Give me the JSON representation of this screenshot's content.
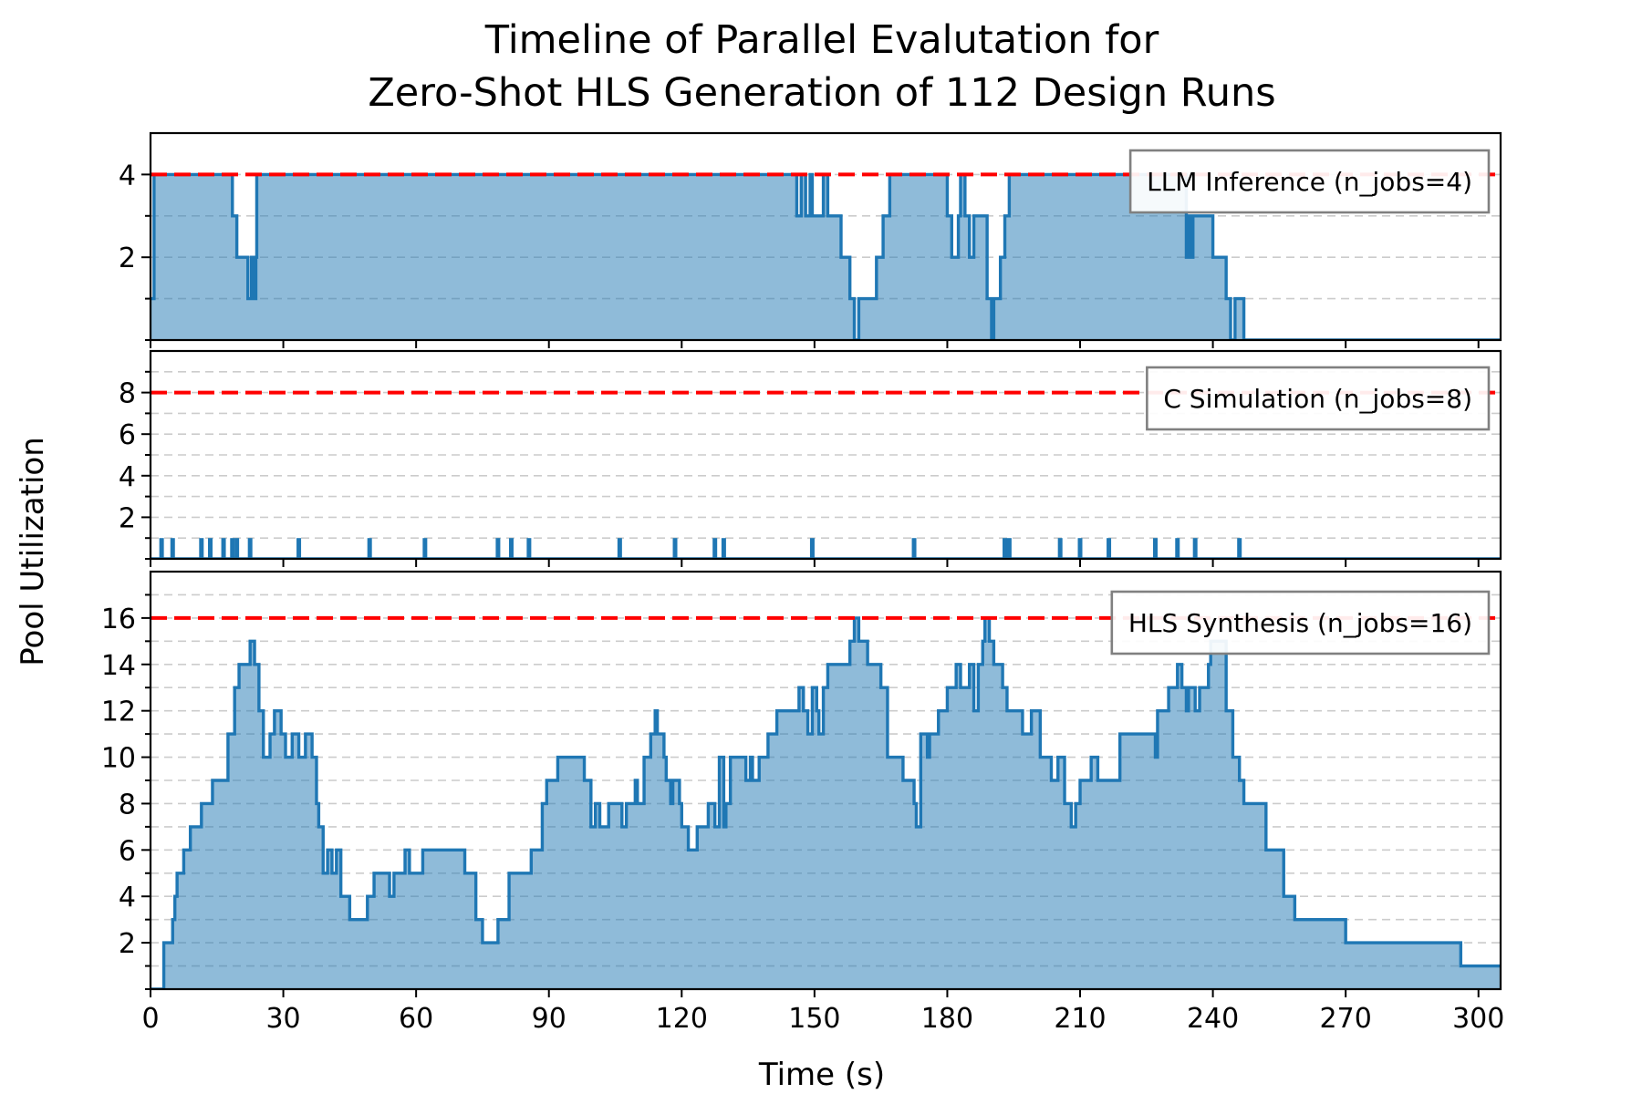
{
  "chart_data": {
    "type": "area",
    "title": [
      "Timeline of Parallel Evalutation for",
      "Zero-Shot HLS Generation of 112 Design Runs"
    ],
    "xlabel": "Time (s)",
    "ylabel": "Pool Utilization",
    "xlim": [
      0,
      305
    ],
    "x_ticks": [
      0,
      30,
      60,
      90,
      120,
      150,
      180,
      210,
      240,
      270,
      300
    ],
    "colors": {
      "step": "#1f77b4",
      "fill": "#1f77b4",
      "capacity": "#ff0000",
      "grid": "#cccccc"
    },
    "panels": [
      {
        "name": "LLM Inference (n_jobs=4)",
        "legend": "LLM Inference (n_jobs=4)",
        "capacity": 4,
        "ylim": [
          0,
          5
        ],
        "major_ticks": [
          2,
          4
        ],
        "minor_ticks": [
          0,
          1,
          2,
          3,
          4
        ],
        "steps": [
          [
            0,
            1
          ],
          [
            0.8,
            4
          ],
          [
            18.5,
            3
          ],
          [
            19.5,
            2
          ],
          [
            22,
            1
          ],
          [
            22.8,
            2
          ],
          [
            23.3,
            1
          ],
          [
            23.8,
            2
          ],
          [
            24,
            4
          ],
          [
            146,
            3
          ],
          [
            147,
            4
          ],
          [
            148,
            3
          ],
          [
            149,
            4
          ],
          [
            149.5,
            3
          ],
          [
            152,
            4
          ],
          [
            153,
            3
          ],
          [
            156,
            2
          ],
          [
            158,
            1
          ],
          [
            159,
            0
          ],
          [
            160,
            1
          ],
          [
            164,
            2
          ],
          [
            165.5,
            3
          ],
          [
            167,
            4
          ],
          [
            180,
            3
          ],
          [
            181,
            2
          ],
          [
            182.5,
            3
          ],
          [
            183,
            4
          ],
          [
            184,
            3
          ],
          [
            185,
            2
          ],
          [
            186,
            3
          ],
          [
            189,
            1
          ],
          [
            190,
            0
          ],
          [
            190.5,
            1
          ],
          [
            192,
            2
          ],
          [
            193,
            3
          ],
          [
            194,
            4
          ],
          [
            208,
            4
          ],
          [
            234,
            2
          ],
          [
            234.6,
            3
          ],
          [
            235,
            2
          ],
          [
            235.5,
            3
          ],
          [
            240,
            2
          ],
          [
            243,
            1
          ],
          [
            244,
            0
          ],
          [
            245,
            1
          ],
          [
            247,
            0
          ],
          [
            305,
            0
          ]
        ]
      },
      {
        "name": "C Simulation (n_jobs=8)",
        "legend": "C Simulation (n_jobs=8)",
        "capacity": 8,
        "ylim": [
          0,
          10
        ],
        "major_ticks": [
          2,
          4,
          6,
          8
        ],
        "minor_ticks": [
          0,
          1,
          2,
          3,
          4,
          5,
          6,
          7,
          8,
          9
        ],
        "spikes": [
          2.5,
          5,
          11.5,
          13.5,
          16.5,
          18.5,
          19.5,
          22.5,
          33.5,
          49.5,
          62,
          78.5,
          81.5,
          85.5,
          106,
          118.5,
          127.5,
          129.5,
          149.5,
          172.5,
          193,
          194,
          205.5,
          210,
          216.5,
          227,
          232,
          236,
          246
        ]
      },
      {
        "name": "HLS Synthesis (n_jobs=16)",
        "legend": "HLS Synthesis (n_jobs=16)",
        "capacity": 16,
        "ylim": [
          0,
          18
        ],
        "major_ticks": [
          2,
          4,
          6,
          8,
          10,
          12,
          14,
          16
        ],
        "minor_ticks": [
          0,
          1,
          2,
          3,
          4,
          5,
          6,
          7,
          8,
          9,
          10,
          11,
          12,
          13,
          14,
          15,
          16,
          17
        ],
        "steps": [
          [
            0,
            0
          ],
          [
            3,
            2
          ],
          [
            5,
            3
          ],
          [
            5.5,
            4
          ],
          [
            6,
            5
          ],
          [
            7.5,
            6
          ],
          [
            9,
            7
          ],
          [
            11.5,
            8
          ],
          [
            14,
            9
          ],
          [
            17.5,
            11
          ],
          [
            19,
            13
          ],
          [
            20,
            14
          ],
          [
            22.5,
            15
          ],
          [
            23.5,
            14
          ],
          [
            24.5,
            12
          ],
          [
            25.5,
            10
          ],
          [
            27,
            11
          ],
          [
            28,
            12
          ],
          [
            29.5,
            11
          ],
          [
            30.5,
            10
          ],
          [
            32,
            11
          ],
          [
            33.5,
            10
          ],
          [
            35,
            11
          ],
          [
            36.5,
            10
          ],
          [
            37.5,
            8
          ],
          [
            38,
            7
          ],
          [
            39,
            5
          ],
          [
            40,
            6
          ],
          [
            41,
            5
          ],
          [
            42,
            6
          ],
          [
            43,
            4
          ],
          [
            45,
            3
          ],
          [
            49,
            4
          ],
          [
            50.5,
            5
          ],
          [
            54,
            4
          ],
          [
            55,
            5
          ],
          [
            56,
            5
          ],
          [
            57.5,
            6
          ],
          [
            58.5,
            5
          ],
          [
            61.5,
            6
          ],
          [
            71,
            5
          ],
          [
            73.5,
            3
          ],
          [
            75,
            2
          ],
          [
            78.5,
            3
          ],
          [
            81,
            5
          ],
          [
            86,
            6
          ],
          [
            86.5,
            6
          ],
          [
            88.5,
            8
          ],
          [
            89.5,
            9
          ],
          [
            92,
            10
          ],
          [
            98,
            9
          ],
          [
            99.5,
            7
          ],
          [
            100.5,
            8
          ],
          [
            101.5,
            7
          ],
          [
            103.5,
            8
          ],
          [
            106.5,
            7
          ],
          [
            107.5,
            8
          ],
          [
            109.5,
            9
          ],
          [
            110,
            8
          ],
          [
            111.5,
            10
          ],
          [
            113,
            11
          ],
          [
            114,
            12
          ],
          [
            114.5,
            11
          ],
          [
            116,
            10
          ],
          [
            116.5,
            9
          ],
          [
            117.5,
            8
          ],
          [
            118,
            9
          ],
          [
            119.5,
            8
          ],
          [
            120,
            7
          ],
          [
            121.5,
            6
          ],
          [
            123.5,
            7
          ],
          [
            126,
            8
          ],
          [
            127.5,
            7
          ],
          [
            128.5,
            10
          ],
          [
            129.5,
            7
          ],
          [
            130,
            8
          ],
          [
            131,
            10
          ],
          [
            134.5,
            9
          ],
          [
            135.5,
            10
          ],
          [
            136,
            9
          ],
          [
            137.5,
            10
          ],
          [
            139.5,
            11
          ],
          [
            141.5,
            12
          ],
          [
            146.5,
            13
          ],
          [
            147.5,
            12
          ],
          [
            148.5,
            11
          ],
          [
            149.5,
            13
          ],
          [
            150.5,
            12
          ],
          [
            151,
            11
          ],
          [
            152,
            13
          ],
          [
            153,
            14
          ],
          [
            158,
            15
          ],
          [
            159,
            16
          ],
          [
            160,
            15
          ],
          [
            162,
            14
          ],
          [
            165,
            13
          ],
          [
            166.5,
            10
          ],
          [
            170,
            9
          ],
          [
            172.5,
            8
          ],
          [
            173,
            7
          ],
          [
            174,
            11
          ],
          [
            175.5,
            10
          ],
          [
            176,
            11
          ],
          [
            178,
            12
          ],
          [
            180,
            13
          ],
          [
            182,
            14
          ],
          [
            183,
            13
          ],
          [
            185,
            14
          ],
          [
            186,
            12
          ],
          [
            187,
            14
          ],
          [
            188,
            15
          ],
          [
            188.5,
            16
          ],
          [
            189.5,
            15
          ],
          [
            190.5,
            14
          ],
          [
            192.5,
            13
          ],
          [
            193.5,
            12
          ],
          [
            197,
            11
          ],
          [
            199,
            12
          ],
          [
            201,
            10
          ],
          [
            203.5,
            9
          ],
          [
            205,
            10
          ],
          [
            206.5,
            8
          ],
          [
            208,
            7
          ],
          [
            209,
            8
          ],
          [
            210,
            9
          ],
          [
            212.5,
            10
          ],
          [
            214,
            9
          ],
          [
            219,
            11
          ],
          [
            227,
            10
          ],
          [
            227.5,
            12
          ],
          [
            230,
            13
          ],
          [
            232,
            14
          ],
          [
            233,
            13
          ],
          [
            234,
            12
          ],
          [
            234.5,
            13
          ],
          [
            236,
            12
          ],
          [
            237,
            13
          ],
          [
            239,
            14
          ],
          [
            239.5,
            15
          ],
          [
            243,
            12
          ],
          [
            244.5,
            10
          ],
          [
            246,
            9
          ],
          [
            247,
            8
          ],
          [
            252,
            6
          ],
          [
            256,
            4
          ],
          [
            258.5,
            3
          ],
          [
            270,
            2
          ],
          [
            283.5,
            2
          ],
          [
            296,
            1
          ],
          [
            305,
            1
          ]
        ]
      }
    ]
  }
}
